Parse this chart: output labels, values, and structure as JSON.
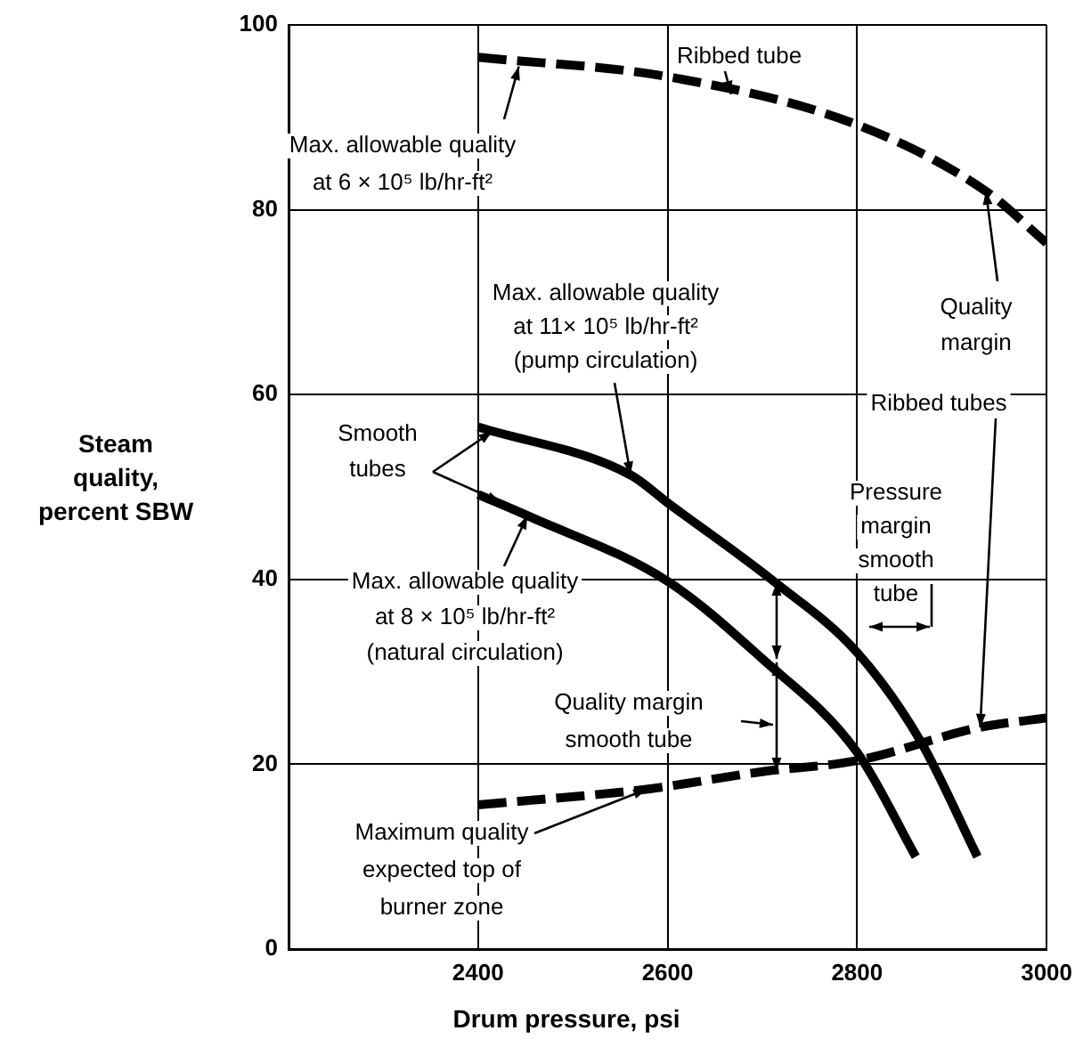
{
  "chart_data": {
    "type": "line",
    "xlabel": "Drum pressure, psi",
    "ylabel": "Steam\nquality,\npercent SBW",
    "xlim": [
      2200,
      3000
    ],
    "xticks": [
      2400,
      2600,
      2800,
      3000
    ],
    "ylim": [
      0,
      100
    ],
    "yticks": [
      0,
      20,
      40,
      60,
      80,
      100
    ],
    "grid": true,
    "legend": false,
    "marker": "none",
    "series": [
      {
        "color": "#000000",
        "line_style": "dashed",
        "x": [
          2400,
          2600,
          2800,
          2936,
          3000
        ],
        "values": [
          96.5,
          94.4,
          89.2,
          82,
          76.4
        ]
      },
      {
        "color": "#000000",
        "line_style": "solid",
        "x": [
          2400,
          2561,
          2600,
          2712,
          2800,
          2867,
          2927
        ],
        "values": [
          56.5,
          51.3,
          48.3,
          39.8,
          32.1,
          22.5,
          10
        ]
      },
      {
        "color": "#000000",
        "line_style": "solid",
        "x": [
          2400,
          2452,
          2600,
          2699,
          2800,
          2862
        ],
        "values": [
          49.2,
          46.9,
          39.8,
          31.5,
          21.3,
          10
        ]
      },
      {
        "color": "#000000",
        "line_style": "dashed",
        "x": [
          2400,
          2578,
          2700,
          2800,
          2930,
          3000
        ],
        "values": [
          15.6,
          17.3,
          19.2,
          20.4,
          24,
          25
        ]
      }
    ],
    "annotations": [
      {
        "text": "Ribbed tube",
        "x": 2667,
        "y": 92.5
      },
      {
        "text": "Max. allowable quality\nat 6 × 10⁵ lb/hr-ft²",
        "x": 2443,
        "y": 95.5
      },
      {
        "text": "Max. allowable quality\nat 11× 10⁵ lb/hr-ft²\n(pump circulation)",
        "x": 2561,
        "y": 51.3
      },
      {
        "text": "Smooth\ntubes",
        "x": 2415,
        "y": 56
      },
      {
        "text": "Max. allowable quality\nat 8 × 10⁵ lb/hr-ft²\n(natural circulation)",
        "x": 2452,
        "y": 46.9
      },
      "Quality margin\nsmooth tube",
      {
        "text": "Maximum quality\nexpected top of\nburner zone",
        "x": 2578,
        "y": 17.3
      },
      {
        "text": "Quality\nmargin",
        "x": 2936,
        "y": 82
      },
      {
        "text": "Ribbed tubes",
        "x": 2930,
        "y": 24
      },
      "Pressure\nmargin\nsmooth\ntube"
    ]
  }
}
